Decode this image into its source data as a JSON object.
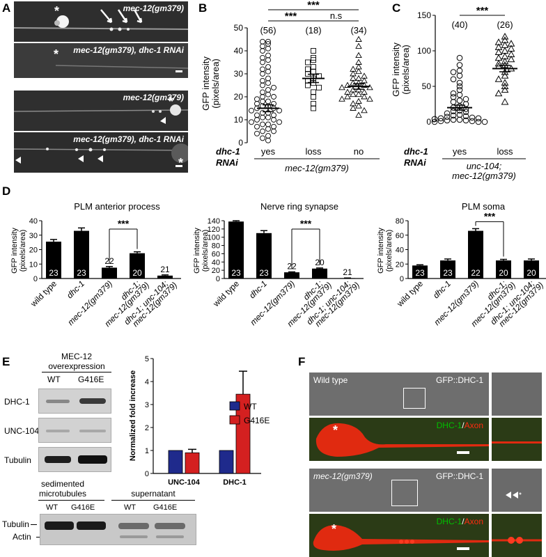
{
  "panels": {
    "A": {
      "label": "A",
      "images": [
        {
          "caption": "mec-12(gm379)"
        },
        {
          "caption": "mec-12(gm379), dhc-1 RNAi"
        },
        {
          "caption": "mec-12(gm379)"
        },
        {
          "caption": "mec-12(gm379), dhc-1 RNAi"
        }
      ]
    },
    "B": {
      "label": "B"
    },
    "C": {
      "label": "C"
    },
    "D": {
      "label": "D"
    },
    "E": {
      "label": "E",
      "overexpression_title_1": "MEC-12",
      "overexpression_title_2": "overexpression",
      "lane_wt": "WT",
      "lane_mut": "G416E",
      "blots": [
        "DHC-1",
        "UNC-104",
        "Tubulin"
      ],
      "sedimented_title_1": "sedimented",
      "sedimented_title_2": "microtubules",
      "supernatant_title": "supernatant",
      "bottom_blot_labels": [
        "Tubulin",
        "Actin"
      ]
    },
    "F": {
      "label": "F",
      "wt_label": "Wild type",
      "mut_label": "mec-12(gm379)",
      "channel_label": "GFP::DHC-1",
      "dhc_text": "DHC-1",
      "slash": "/",
      "axon_text": "Axon"
    }
  },
  "colors": {
    "wt_bar": "#1f2a8c",
    "mut_bar": "#d42020",
    "red_channel": "#e02a10",
    "green_label": "#00c000"
  },
  "chart_data": [
    {
      "id": "B",
      "type": "scatter",
      "ylabel": "GFP intensity (pixels/area)",
      "ylim": [
        0,
        50
      ],
      "yticks": [
        0,
        10,
        20,
        30,
        40,
        50
      ],
      "row_label_1": "dhc-1",
      "row_label_2": "RNAi",
      "categories": [
        "yes",
        "loss",
        "no"
      ],
      "n": [
        "(56)",
        "(18)",
        "(34)"
      ],
      "means": [
        15,
        28,
        24.5
      ],
      "sems": [
        1.5,
        1.8,
        1.2
      ],
      "group_label": "mec-12(gm379)",
      "significance": [
        "***",
        "***",
        "n.s"
      ],
      "points": [
        [
          44,
          44,
          43,
          42,
          41,
          40,
          38,
          37,
          36,
          35,
          33,
          32,
          31,
          30,
          28,
          27,
          26,
          25,
          24,
          23,
          22,
          21,
          20,
          20,
          19,
          18,
          18,
          17,
          17,
          16,
          16,
          15,
          15,
          14,
          14,
          13,
          13,
          12,
          12,
          11,
          11,
          10,
          10,
          9,
          9,
          8,
          8,
          7,
          7,
          6,
          5,
          5,
          4,
          3,
          2,
          1
        ],
        [
          40,
          37,
          36,
          35,
          33,
          32,
          31,
          30,
          29,
          28,
          27,
          26,
          25,
          24,
          22,
          20,
          17,
          15
        ],
        [
          45,
          42,
          38,
          35,
          33,
          32,
          31,
          30,
          29,
          28,
          28,
          27,
          26,
          26,
          25,
          25,
          24,
          24,
          23,
          23,
          22,
          22,
          21,
          21,
          20,
          20,
          19,
          19,
          18,
          17,
          16,
          15,
          14,
          12
        ]
      ]
    },
    {
      "id": "C",
      "type": "scatter",
      "ylabel": "GFP intensity (pixels/area)",
      "ylim": [
        0,
        150
      ],
      "yticks": [
        0,
        50,
        100,
        150
      ],
      "row_label_1": "dhc-1",
      "row_label_2": "RNAi",
      "categories": [
        "yes",
        "loss"
      ],
      "n": [
        "(40)",
        "(26)"
      ],
      "means": [
        20,
        75
      ],
      "sems": [
        3.5,
        4.5
      ],
      "group_label_1": "unc-104;",
      "group_label_2": "mec-12(gm379)",
      "significance": [
        "***"
      ],
      "points": [
        [
          90,
          80,
          72,
          70,
          65,
          60,
          55,
          50,
          45,
          40,
          38,
          35,
          32,
          30,
          28,
          25,
          22,
          20,
          18,
          16,
          15,
          14,
          12,
          10,
          9,
          8,
          7,
          6,
          5,
          5,
          4,
          3,
          3,
          2,
          2,
          1,
          1,
          0,
          0,
          0
        ],
        [
          120,
          115,
          112,
          110,
          108,
          105,
          103,
          100,
          98,
          95,
          92,
          90,
          88,
          85,
          82,
          80,
          78,
          75,
          70,
          65,
          60,
          55,
          50,
          45,
          40,
          28
        ]
      ]
    },
    {
      "id": "D1",
      "type": "bar",
      "title": "PLM anterior process",
      "ylabel": "GFP intensity (pixels/area)",
      "ylim": [
        0,
        40
      ],
      "yticks": [
        0,
        10,
        20,
        30,
        40
      ],
      "categories": [
        "wild type",
        "dhc-1",
        "mec-12(gm379)",
        "dhc-1; mec-12(gm379)",
        "dhc-1; unc-104; mec-12(gm379)"
      ],
      "values": [
        25.5,
        33,
        7.5,
        17.5,
        2
      ],
      "errors": [
        1.5,
        2,
        0.8,
        1,
        0.5
      ],
      "n": [
        "23",
        "23",
        "22",
        "20",
        "21"
      ],
      "significance": "***"
    },
    {
      "id": "D2",
      "type": "bar",
      "title": "Nerve ring synapse",
      "ylabel": "GFP intensity (pixels/area)",
      "ylim": [
        0,
        140
      ],
      "yticks": [
        0,
        20,
        40,
        60,
        80,
        100,
        120,
        140
      ],
      "categories": [
        "wild type",
        "dhc-1",
        "mec-12(gm379)",
        "dhc-1; mec-12(gm379)",
        "dhc-1; unc-104; mec-12(gm379)"
      ],
      "values": [
        138,
        110,
        15,
        24,
        1
      ],
      "errors": [
        2,
        6,
        1,
        1.5,
        0.3
      ],
      "n": [
        "23",
        "23",
        "22",
        "20",
        "21"
      ],
      "significance": "***"
    },
    {
      "id": "D3",
      "type": "bar",
      "title": "PLM soma",
      "ylabel": "GFP intensity (pixels/area)",
      "ylim": [
        0,
        80
      ],
      "yticks": [
        0,
        20,
        40,
        60,
        80
      ],
      "categories": [
        "wild type",
        "dhc-1",
        "mec-12(gm379)",
        "dhc-1; mec-12(gm379)",
        "dhc-1; unc-104; mec-12(gm379)"
      ],
      "values": [
        18,
        25,
        66,
        25,
        25
      ],
      "errors": [
        1,
        2,
        3,
        1.5,
        2
      ],
      "n": [
        "23",
        "23",
        "22",
        "20",
        "20"
      ],
      "significance": "***"
    },
    {
      "id": "E",
      "type": "bar",
      "ylabel": "Normalized fold increase",
      "ylim": [
        0,
        5
      ],
      "yticks": [
        0,
        1,
        2,
        3,
        4,
        5
      ],
      "categories": [
        "UNC-104",
        "DHC-1"
      ],
      "series": [
        {
          "name": "WT",
          "values": [
            1,
            1
          ],
          "errors": [
            0,
            0
          ]
        },
        {
          "name": "G416E",
          "values": [
            0.9,
            3.45
          ],
          "errors": [
            0.15,
            1.0
          ]
        }
      ],
      "legend": "top-right"
    }
  ]
}
